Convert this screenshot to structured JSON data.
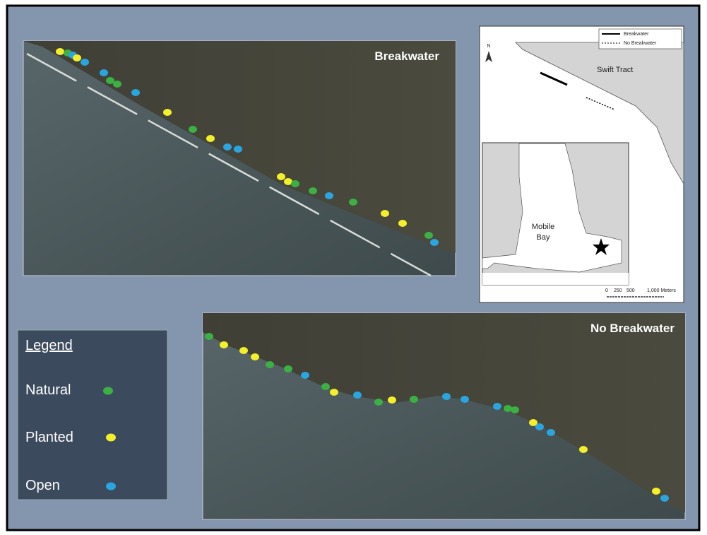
{
  "panels": {
    "top": {
      "label": "Breakwater"
    },
    "bottom": {
      "label": "No Breakwater"
    }
  },
  "legend": {
    "title": "Legend",
    "items": [
      "Natural",
      "Planted",
      "Open"
    ]
  },
  "map": {
    "legend": [
      "Breakwater",
      "No Breakwater"
    ],
    "north": "N",
    "place": "Swift Tract",
    "bay": [
      "Mobile",
      "Bay"
    ],
    "scale": [
      "0",
      "250",
      "500",
      "1,000 Meters"
    ]
  }
}
